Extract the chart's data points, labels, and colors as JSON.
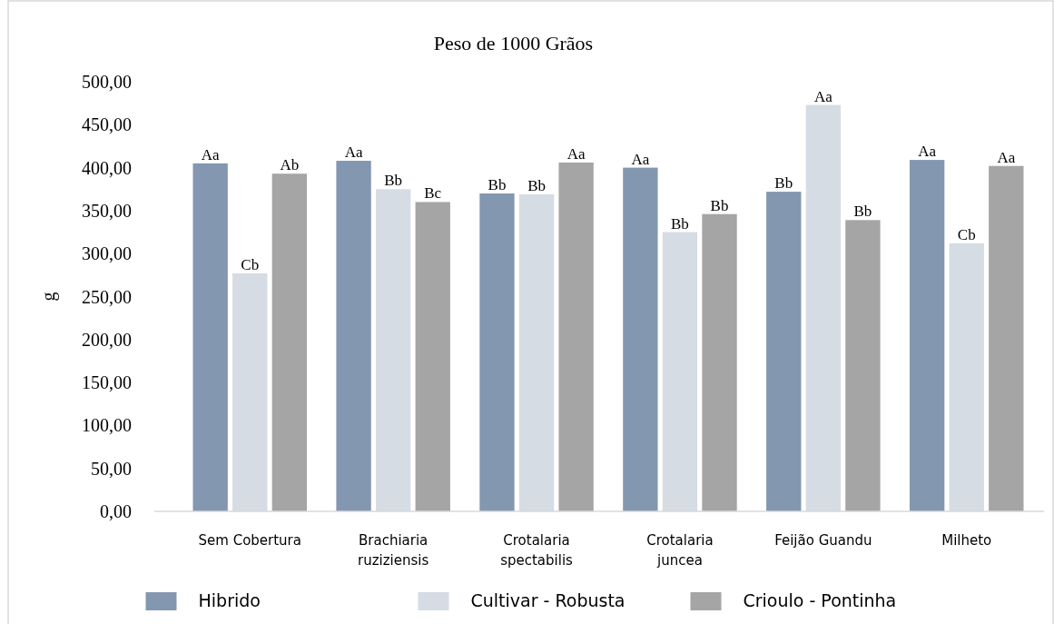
{
  "chart_data": {
    "type": "bar",
    "title": "Peso de 1000 Grãos",
    "ylabel": "g",
    "categories": [
      "Sem Cobertura",
      "Brachiaria ruziziensis",
      "Crotalaria spectabilis",
      "Crotalaria juncea",
      "Feijão Guandu",
      "Milheto"
    ],
    "series": [
      {
        "name": "Hibrido",
        "color": "#8497b0",
        "values": [
          405,
          408,
          370,
          400,
          372,
          409
        ],
        "value_labels": [
          "Aa",
          "Aa",
          "Bb",
          "Aa",
          "Bb",
          "Aa"
        ]
      },
      {
        "name": "Cultivar - Robusta",
        "color": "#d6dce4",
        "values": [
          277,
          375,
          369,
          325,
          473,
          312
        ],
        "value_labels": [
          "Cb",
          "Bb",
          "Bb",
          "Bb",
          "Aa",
          "Cb"
        ]
      },
      {
        "name": "Crioulo - Pontinha",
        "color": "#a5a5a5",
        "values": [
          393,
          360,
          406,
          346,
          339,
          402
        ],
        "value_labels": [
          "Ab",
          "Bc",
          "Aa",
          "Bb",
          "Bb",
          "Aa"
        ]
      }
    ],
    "ylim": [
      0,
      500
    ],
    "yticks": [
      {
        "value": 0,
        "label": "0,00"
      },
      {
        "value": 50,
        "label": "50,00"
      },
      {
        "value": 100,
        "label": "100,00"
      },
      {
        "value": 150,
        "label": "150,00"
      },
      {
        "value": 200,
        "label": "200,00"
      },
      {
        "value": 250,
        "label": "250,00"
      },
      {
        "value": 300,
        "label": "300,00"
      },
      {
        "value": 350,
        "label": "350,00"
      },
      {
        "value": 400,
        "label": "400,00"
      },
      {
        "value": 450,
        "label": "450,00"
      },
      {
        "value": 500,
        "label": "500,00"
      }
    ],
    "grid": false,
    "legend": "bottom"
  }
}
